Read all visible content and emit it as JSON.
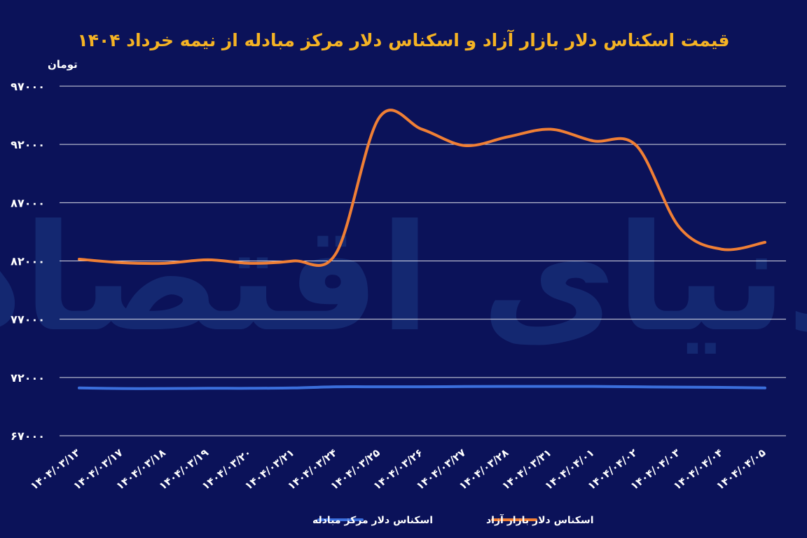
{
  "watermark": "دنیای اقتصاد",
  "chart_data": {
    "type": "line",
    "title": "قیمت اسکناس دلار بازار آزاد و اسکناس دلار مرکز مبادله از نیمه خرداد ۱۴۰۴",
    "ylabel": "تومان",
    "xlabel": "",
    "ylim": [
      67000,
      97000
    ],
    "yticks": [
      "۹۷۰۰۰",
      "۹۲۰۰۰",
      "۸۷۰۰۰",
      "۸۲۰۰۰",
      "۷۷۰۰۰",
      "۷۲۰۰۰",
      "۶۷۰۰۰"
    ],
    "ytick_values": [
      97000,
      92000,
      87000,
      82000,
      77000,
      72000,
      67000
    ],
    "categories": [
      "۱۴۰۴/۰۳/۱۳",
      "۱۴۰۴/۰۳/۱۷",
      "۱۴۰۴/۰۳/۱۸",
      "۱۴۰۴/۰۳/۱۹",
      "۱۴۰۴/۰۳/۲۰",
      "۱۴۰۴/۰۳/۲۱",
      "۱۴۰۴/۰۳/۲۴",
      "۱۴۰۴/۰۳/۲۵",
      "۱۴۰۴/۰۳/۲۶",
      "۱۴۰۴/۰۳/۲۷",
      "۱۴۰۴/۰۳/۲۸",
      "۱۴۰۴/۰۳/۳۱",
      "۱۴۰۴/۰۴/۰۱",
      "۱۴۰۴/۰۴/۰۲",
      "۱۴۰۴/۰۴/۰۳",
      "۱۴۰۴/۰۴/۰۴",
      "۱۴۰۴/۰۴/۰۵"
    ],
    "series": [
      {
        "name": "اسکناس دلار بازار آزاد",
        "color": "#f07f35",
        "values": [
          82150,
          81850,
          81800,
          82100,
          81800,
          82000,
          82700,
          94300,
          93300,
          91900,
          92650,
          93300,
          92300,
          91900,
          84900,
          83000,
          83600
        ]
      },
      {
        "name": "اسکناس دلار مرکز مبادله",
        "color": "#3b6fdc",
        "values": [
          71100,
          71050,
          71050,
          71070,
          71070,
          71100,
          71200,
          71200,
          71200,
          71220,
          71230,
          71230,
          71230,
          71200,
          71170,
          71150,
          71100
        ]
      }
    ],
    "legend": "bottom",
    "grid": true
  }
}
